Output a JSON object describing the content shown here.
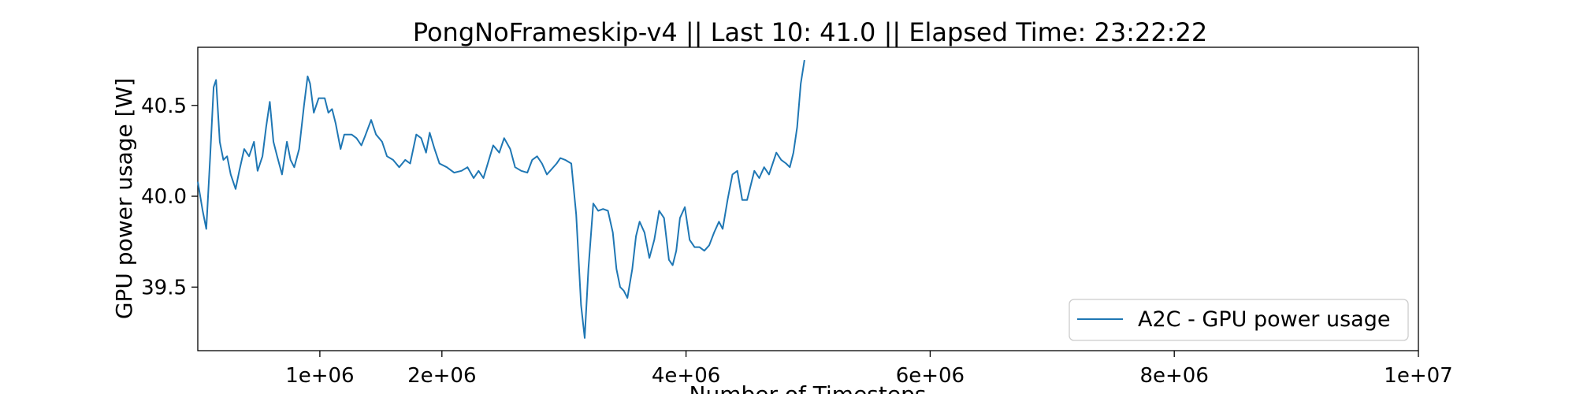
{
  "chart_data": {
    "type": "line",
    "title": "PongNoFrameskip-v4 || Last 10: 41.0 || Elapsed Time: 23:22:22",
    "xlabel": "Number of Timesteps",
    "ylabel": "GPU power usage [W]",
    "xlim": [
      0,
      10000000
    ],
    "ylim": [
      39.15,
      40.82
    ],
    "x_ticks": [
      1000000,
      2000000,
      4000000,
      6000000,
      8000000,
      10000000
    ],
    "x_tick_labels": [
      "1e+06",
      "2e+06",
      "4e+06",
      "6e+06",
      "8e+06",
      "1e+07"
    ],
    "y_ticks": [
      39.5,
      40.0,
      40.5
    ],
    "y_tick_labels": [
      "39.5",
      "40.0",
      "40.5"
    ],
    "grid": false,
    "legend_position": "lower-right",
    "series": [
      {
        "name": "A2C - GPU power usage",
        "color": "#1f77b4",
        "points": [
          [
            0,
            40.08
          ],
          [
            40000,
            39.92
          ],
          [
            70000,
            39.82
          ],
          [
            100000,
            40.2
          ],
          [
            130000,
            40.6
          ],
          [
            150000,
            40.64
          ],
          [
            180000,
            40.3
          ],
          [
            210000,
            40.2
          ],
          [
            240000,
            40.22
          ],
          [
            270000,
            40.12
          ],
          [
            310000,
            40.04
          ],
          [
            340000,
            40.14
          ],
          [
            380000,
            40.26
          ],
          [
            420000,
            40.22
          ],
          [
            460000,
            40.3
          ],
          [
            490000,
            40.14
          ],
          [
            530000,
            40.22
          ],
          [
            560000,
            40.38
          ],
          [
            590000,
            40.52
          ],
          [
            620000,
            40.3
          ],
          [
            650000,
            40.22
          ],
          [
            690000,
            40.12
          ],
          [
            730000,
            40.3
          ],
          [
            760000,
            40.2
          ],
          [
            790000,
            40.16
          ],
          [
            830000,
            40.26
          ],
          [
            870000,
            40.5
          ],
          [
            900000,
            40.66
          ],
          [
            920000,
            40.62
          ],
          [
            950000,
            40.46
          ],
          [
            990000,
            40.54
          ],
          [
            1040000,
            40.54
          ],
          [
            1070000,
            40.46
          ],
          [
            1100000,
            40.48
          ],
          [
            1130000,
            40.4
          ],
          [
            1170000,
            40.26
          ],
          [
            1200000,
            40.34
          ],
          [
            1260000,
            40.34
          ],
          [
            1300000,
            40.32
          ],
          [
            1340000,
            40.28
          ],
          [
            1370000,
            40.33
          ],
          [
            1420000,
            40.42
          ],
          [
            1460000,
            40.34
          ],
          [
            1510000,
            40.3
          ],
          [
            1550000,
            40.22
          ],
          [
            1600000,
            40.2
          ],
          [
            1650000,
            40.16
          ],
          [
            1700000,
            40.2
          ],
          [
            1740000,
            40.18
          ],
          [
            1790000,
            40.34
          ],
          [
            1830000,
            40.32
          ],
          [
            1870000,
            40.24
          ],
          [
            1900000,
            40.35
          ],
          [
            1940000,
            40.26
          ],
          [
            1980000,
            40.18
          ],
          [
            2040000,
            40.16
          ],
          [
            2100000,
            40.13
          ],
          [
            2160000,
            40.14
          ],
          [
            2210000,
            40.16
          ],
          [
            2260000,
            40.1
          ],
          [
            2300000,
            40.14
          ],
          [
            2340000,
            40.1
          ],
          [
            2380000,
            40.19
          ],
          [
            2420000,
            40.28
          ],
          [
            2470000,
            40.24
          ],
          [
            2510000,
            40.32
          ],
          [
            2560000,
            40.26
          ],
          [
            2600000,
            40.16
          ],
          [
            2650000,
            40.14
          ],
          [
            2700000,
            40.13
          ],
          [
            2740000,
            40.2
          ],
          [
            2780000,
            40.22
          ],
          [
            2820000,
            40.18
          ],
          [
            2860000,
            40.12
          ],
          [
            2900000,
            40.15
          ],
          [
            2940000,
            40.18
          ],
          [
            2970000,
            40.21
          ],
          [
            3010000,
            40.2
          ],
          [
            3060000,
            40.18
          ],
          [
            3100000,
            39.9
          ],
          [
            3140000,
            39.4
          ],
          [
            3170000,
            39.22
          ],
          [
            3200000,
            39.6
          ],
          [
            3240000,
            39.96
          ],
          [
            3280000,
            39.92
          ],
          [
            3320000,
            39.93
          ],
          [
            3360000,
            39.92
          ],
          [
            3400000,
            39.8
          ],
          [
            3430000,
            39.6
          ],
          [
            3460000,
            39.5
          ],
          [
            3490000,
            39.48
          ],
          [
            3520000,
            39.44
          ],
          [
            3560000,
            39.6
          ],
          [
            3590000,
            39.78
          ],
          [
            3620000,
            39.86
          ],
          [
            3660000,
            39.8
          ],
          [
            3700000,
            39.66
          ],
          [
            3740000,
            39.76
          ],
          [
            3780000,
            39.92
          ],
          [
            3820000,
            39.88
          ],
          [
            3860000,
            39.65
          ],
          [
            3890000,
            39.62
          ],
          [
            3920000,
            39.7
          ],
          [
            3950000,
            39.88
          ],
          [
            3990000,
            39.94
          ],
          [
            4030000,
            39.76
          ],
          [
            4070000,
            39.72
          ],
          [
            4110000,
            39.72
          ],
          [
            4150000,
            39.7
          ],
          [
            4190000,
            39.73
          ],
          [
            4230000,
            39.8
          ],
          [
            4270000,
            39.86
          ],
          [
            4300000,
            39.82
          ],
          [
            4340000,
            39.98
          ],
          [
            4380000,
            40.12
          ],
          [
            4420000,
            40.14
          ],
          [
            4460000,
            39.98
          ],
          [
            4500000,
            39.98
          ],
          [
            4530000,
            40.06
          ],
          [
            4560000,
            40.14
          ],
          [
            4600000,
            40.1
          ],
          [
            4640000,
            40.16
          ],
          [
            4680000,
            40.12
          ],
          [
            4710000,
            40.18
          ],
          [
            4740000,
            40.24
          ],
          [
            4780000,
            40.2
          ],
          [
            4820000,
            40.18
          ],
          [
            4850000,
            40.16
          ],
          [
            4880000,
            40.24
          ],
          [
            4910000,
            40.38
          ],
          [
            4940000,
            40.62
          ],
          [
            4970000,
            40.75
          ]
        ]
      }
    ]
  }
}
